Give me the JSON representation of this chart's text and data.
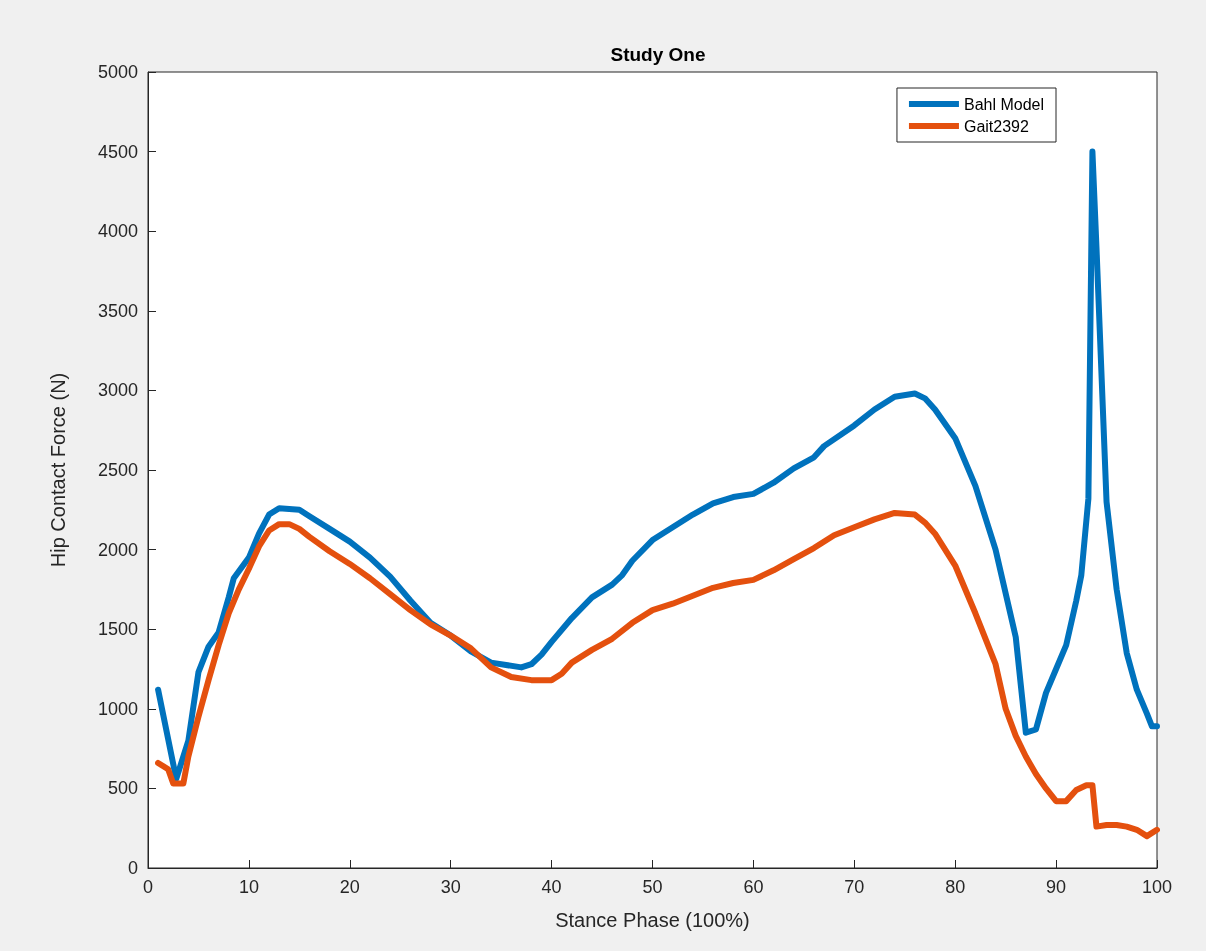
{
  "chart_data": {
    "type": "line",
    "title": "Study One",
    "xlabel": "Stance Phase (100%)",
    "ylabel": "Hip Contact Force (N)",
    "xlim": [
      0,
      100
    ],
    "xticks": [
      0,
      10,
      20,
      30,
      40,
      50,
      60,
      70,
      80,
      90,
      100
    ],
    "ylim": [
      0,
      5000
    ],
    "yticks": [
      0,
      500,
      1000,
      1500,
      2000,
      2500,
      3000,
      3500,
      4000,
      4500,
      5000
    ],
    "grid": false,
    "legend": "top right",
    "marker": "none",
    "line_style": "solid",
    "series": [
      {
        "name": "Bahl Model",
        "color": "#0072bd",
        "x": [
          1,
          2.8,
          4,
          5,
          6,
          7,
          8,
          8.5,
          10,
          11,
          12,
          13,
          15,
          16,
          18,
          20,
          22,
          24,
          26,
          28,
          30,
          32,
          34,
          37,
          38,
          39,
          40,
          42,
          44,
          46,
          47,
          48,
          50,
          52,
          54,
          56,
          58,
          60,
          62,
          64,
          66,
          67,
          70,
          72,
          74,
          76,
          77,
          78,
          80,
          82,
          84,
          86,
          87,
          88,
          89,
          90,
          91,
          92,
          92.5,
          93.2,
          93.6,
          94,
          95,
          96,
          97,
          98,
          99,
          99.5,
          100
        ],
        "values": [
          1120,
          560,
          800,
          1230,
          1390,
          1480,
          1700,
          1820,
          1950,
          2100,
          2220,
          2260,
          2250,
          2210,
          2130,
          2050,
          1950,
          1830,
          1680,
          1540,
          1460,
          1360,
          1290,
          1260,
          1280,
          1340,
          1420,
          1570,
          1700,
          1780,
          1840,
          1930,
          2060,
          2140,
          2220,
          2290,
          2330,
          2350,
          2420,
          2510,
          2580,
          2650,
          2780,
          2880,
          2960,
          2980,
          2950,
          2880,
          2700,
          2400,
          2000,
          1450,
          850,
          870,
          1100,
          1250,
          1400,
          1680,
          1840,
          2320,
          4500,
          3900,
          2300,
          1750,
          1350,
          1120,
          970,
          890,
          890
        ]
      },
      {
        "name": "Gait2392",
        "color": "#e4500e",
        "x": [
          1,
          2,
          2.5,
          3.5,
          4,
          5,
          6,
          7,
          8,
          9,
          10,
          11,
          12,
          13,
          14,
          15,
          16,
          18,
          20,
          22,
          24,
          26,
          28,
          30,
          32,
          34,
          36,
          38,
          40,
          41,
          42,
          44,
          46,
          48,
          50,
          52,
          54,
          56,
          58,
          60,
          62,
          64,
          66,
          68,
          70,
          72,
          74,
          76,
          77,
          78,
          80,
          82,
          84,
          85,
          86,
          87,
          88,
          89,
          90,
          91,
          92,
          93,
          93.6,
          94,
          95,
          96,
          97,
          98,
          99,
          100
        ],
        "values": [
          660,
          620,
          530,
          530,
          700,
          950,
          1180,
          1400,
          1600,
          1750,
          1880,
          2020,
          2120,
          2160,
          2160,
          2130,
          2080,
          1990,
          1910,
          1820,
          1720,
          1620,
          1530,
          1460,
          1380,
          1260,
          1200,
          1180,
          1180,
          1220,
          1290,
          1370,
          1440,
          1540,
          1620,
          1660,
          1710,
          1760,
          1790,
          1810,
          1870,
          1940,
          2010,
          2090,
          2140,
          2190,
          2230,
          2220,
          2170,
          2100,
          1900,
          1600,
          1280,
          1000,
          830,
          700,
          590,
          500,
          420,
          420,
          490,
          520,
          520,
          260,
          270,
          270,
          260,
          240,
          200,
          240
        ]
      }
    ]
  }
}
